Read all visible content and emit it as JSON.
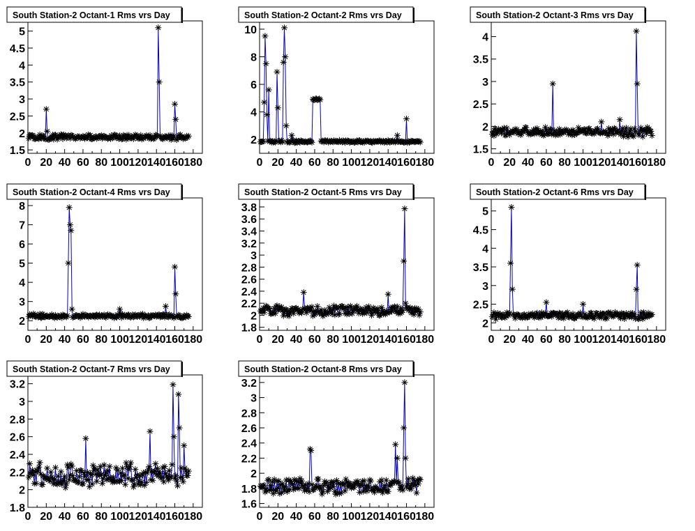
{
  "colors": {
    "background": "#ffffff",
    "frame": "#000000",
    "line": "#0000cc",
    "marker": "#000000",
    "title_box_fill": "#ffffff",
    "title_box_border": "#000000",
    "text": "#000000"
  },
  "chart_data": [
    {
      "type": "line",
      "title": "South Station-2 Octant-1 Rms vrs Day",
      "xlim": [
        0,
        190
      ],
      "ylim": [
        1.4,
        5.3
      ],
      "xticks": [
        0,
        20,
        40,
        60,
        80,
        100,
        120,
        140,
        160,
        180
      ],
      "xtick_labels": [
        "0",
        "20",
        "40",
        "60",
        "80",
        "100",
        "120",
        "140",
        "160",
        "180"
      ],
      "yticks": [
        1.5,
        2,
        2.5,
        3,
        3.5,
        4,
        4.5,
        5
      ],
      "ytick_labels": [
        "1.5",
        "2",
        "2.5",
        "3",
        "3.5",
        "4",
        "4.5",
        "5"
      ],
      "series": [
        {
          "base": 1.88,
          "noise": 0.07,
          "start": 1,
          "end": 175,
          "step": 1,
          "spikes": [
            [
              20,
              2.7
            ],
            [
              21,
              2.05
            ],
            [
              142,
              5.1
            ],
            [
              143,
              3.5
            ],
            [
              160,
              2.85
            ],
            [
              161,
              2.4
            ]
          ],
          "plateaus": []
        }
      ]
    },
    {
      "type": "line",
      "title": "South Station-2 Octant-2 Rms vrs Day",
      "xlim": [
        0,
        190
      ],
      "ylim": [
        1.0,
        10.6
      ],
      "xticks": [
        0,
        20,
        40,
        60,
        80,
        100,
        120,
        140,
        160,
        180
      ],
      "xtick_labels": [
        "0",
        "20",
        "40",
        "60",
        "80",
        "100",
        "120",
        "140",
        "160",
        "180"
      ],
      "yticks": [
        2,
        4,
        6,
        8,
        10
      ],
      "ytick_labels": [
        "2",
        "4",
        "6",
        "8",
        "10"
      ],
      "series": [
        {
          "base": 1.85,
          "noise": 0.08,
          "start": 1,
          "end": 175,
          "step": 1,
          "spikes": [
            [
              5,
              4.7
            ],
            [
              6,
              9.5
            ],
            [
              7,
              7.5
            ],
            [
              8,
              3.8
            ],
            [
              10,
              5.6
            ],
            [
              19,
              6.9
            ],
            [
              20,
              4.3
            ],
            [
              26,
              7.6
            ],
            [
              27,
              10.1
            ],
            [
              28,
              8.0
            ],
            [
              29,
              3.0
            ],
            [
              35,
              2.3
            ],
            [
              150,
              2.3
            ],
            [
              160,
              3.5
            ]
          ],
          "plateaus": [
            [
              58,
              66,
              4.9
            ]
          ]
        }
      ]
    },
    {
      "type": "line",
      "title": "South Station-2 Octant-3 Rms vrs Day",
      "xlim": [
        0,
        190
      ],
      "ylim": [
        1.4,
        4.35
      ],
      "xticks": [
        0,
        20,
        40,
        60,
        80,
        100,
        120,
        140,
        160,
        180
      ],
      "xtick_labels": [
        "0",
        "20",
        "40",
        "60",
        "80",
        "100",
        "120",
        "140",
        "160",
        "180"
      ],
      "yticks": [
        1.5,
        2,
        2.5,
        3,
        3.5,
        4
      ],
      "ytick_labels": [
        "1.5",
        "2",
        "2.5",
        "3",
        "3.5",
        "4"
      ],
      "series": [
        {
          "base": 1.88,
          "noise": 0.09,
          "start": 1,
          "end": 175,
          "step": 1,
          "spikes": [
            [
              67,
              2.95
            ],
            [
              158,
              4.12
            ],
            [
              159,
              2.95
            ],
            [
              120,
              2.1
            ],
            [
              140,
              2.15
            ]
          ],
          "plateaus": []
        }
      ]
    },
    {
      "type": "line",
      "title": "South Station-2 Octant-4 Rms vrs Day",
      "xlim": [
        0,
        190
      ],
      "ylim": [
        1.5,
        8.4
      ],
      "xticks": [
        0,
        20,
        40,
        60,
        80,
        100,
        120,
        140,
        160,
        180
      ],
      "xtick_labels": [
        "0",
        "20",
        "40",
        "60",
        "80",
        "100",
        "120",
        "140",
        "160",
        "180"
      ],
      "yticks": [
        2,
        3,
        4,
        5,
        6,
        7,
        8
      ],
      "ytick_labels": [
        "2",
        "3",
        "4",
        "5",
        "6",
        "7",
        "8"
      ],
      "series": [
        {
          "base": 2.25,
          "noise": 0.09,
          "start": 1,
          "end": 175,
          "step": 1,
          "spikes": [
            [
              44,
              5.0
            ],
            [
              45,
              7.9
            ],
            [
              46,
              7.0
            ],
            [
              47,
              6.7
            ],
            [
              48,
              2.6
            ],
            [
              100,
              2.6
            ],
            [
              150,
              2.75
            ],
            [
              160,
              4.8
            ],
            [
              161,
              3.4
            ]
          ],
          "plateaus": []
        }
      ]
    },
    {
      "type": "line",
      "title": "South Station-2 Octant-5 Rms vrs Day",
      "xlim": [
        0,
        190
      ],
      "ylim": [
        1.75,
        3.95
      ],
      "xticks": [
        0,
        20,
        40,
        60,
        80,
        100,
        120,
        140,
        160,
        180
      ],
      "xtick_labels": [
        "0",
        "20",
        "40",
        "60",
        "80",
        "100",
        "120",
        "140",
        "160",
        "180"
      ],
      "yticks": [
        1.8,
        2,
        2.2,
        2.4,
        2.6,
        2.8,
        3,
        3.2,
        3.4,
        3.6,
        3.8
      ],
      "ytick_labels": [
        "1.8",
        "2",
        "2.2",
        "2.4",
        "2.6",
        "2.8",
        "3",
        "3.2",
        "3.4",
        "3.6",
        "3.8"
      ],
      "series": [
        {
          "base": 2.08,
          "noise": 0.08,
          "start": 1,
          "end": 175,
          "step": 1,
          "spikes": [
            [
              48,
              2.38
            ],
            [
              140,
              2.35
            ],
            [
              157,
              2.9
            ],
            [
              158,
              3.77
            ],
            [
              159,
              2.2
            ]
          ],
          "plateaus": []
        }
      ]
    },
    {
      "type": "line",
      "title": "South Station-2 Octant-6 Rms vrs Day",
      "xlim": [
        0,
        190
      ],
      "ylim": [
        1.8,
        5.35
      ],
      "xticks": [
        0,
        20,
        40,
        60,
        80,
        100,
        120,
        140,
        160,
        180
      ],
      "xtick_labels": [
        "0",
        "20",
        "40",
        "60",
        "80",
        "100",
        "120",
        "140",
        "160",
        "180"
      ],
      "yticks": [
        2,
        2.5,
        3,
        3.5,
        4,
        4.5,
        5
      ],
      "ytick_labels": [
        "2",
        "2.5",
        "3",
        "3.5",
        "4",
        "4.5",
        "5"
      ],
      "series": [
        {
          "base": 2.2,
          "noise": 0.08,
          "start": 1,
          "end": 175,
          "step": 1,
          "spikes": [
            [
              21,
              3.6
            ],
            [
              22,
              5.1
            ],
            [
              23,
              2.9
            ],
            [
              60,
              2.55
            ],
            [
              100,
              2.5
            ],
            [
              158,
              2.9
            ],
            [
              159,
              3.55
            ]
          ],
          "plateaus": []
        }
      ]
    },
    {
      "type": "line",
      "title": "South Station-2 Octant-7 Rms vrs Day",
      "xlim": [
        0,
        190
      ],
      "ylim": [
        1.8,
        3.3
      ],
      "xticks": [
        0,
        20,
        40,
        60,
        80,
        100,
        120,
        140,
        160,
        180
      ],
      "xtick_labels": [
        "0",
        "20",
        "40",
        "60",
        "80",
        "100",
        "120",
        "140",
        "160",
        "180"
      ],
      "yticks": [
        1.8,
        2,
        2.2,
        2.4,
        2.6,
        2.8,
        3,
        3.2
      ],
      "ytick_labels": [
        "1.8",
        "2",
        "2.2",
        "2.4",
        "2.6",
        "2.8",
        "3",
        "3.2"
      ],
      "series": [
        {
          "base": 2.17,
          "noise": 0.12,
          "start": 1,
          "end": 175,
          "step": 1,
          "spikes": [
            [
              63,
              2.58
            ],
            [
              133,
              2.66
            ],
            [
              158,
              3.19
            ],
            [
              159,
              2.6
            ],
            [
              164,
              3.08
            ],
            [
              165,
              2.7
            ],
            [
              170,
              2.5
            ]
          ],
          "plateaus": []
        }
      ]
    },
    {
      "type": "line",
      "title": "South Station-2 Octant-8 Rms vrs Day",
      "xlim": [
        0,
        190
      ],
      "ylim": [
        1.55,
        3.3
      ],
      "xticks": [
        0,
        20,
        40,
        60,
        80,
        100,
        120,
        140,
        160,
        180
      ],
      "xtick_labels": [
        "0",
        "20",
        "40",
        "60",
        "80",
        "100",
        "120",
        "140",
        "160",
        "180"
      ],
      "yticks": [
        1.6,
        1.8,
        2,
        2.2,
        2.4,
        2.6,
        2.8,
        3,
        3.2
      ],
      "ytick_labels": [
        "1.6",
        "1.8",
        "2",
        "2.2",
        "2.4",
        "2.6",
        "2.8",
        "3",
        "3.2"
      ],
      "series": [
        {
          "base": 1.83,
          "noise": 0.09,
          "start": 1,
          "end": 175,
          "step": 1,
          "spikes": [
            [
              55,
              2.32
            ],
            [
              56,
              2.3
            ],
            [
              148,
              2.38
            ],
            [
              150,
              2.2
            ],
            [
              157,
              2.6
            ],
            [
              158,
              3.2
            ],
            [
              159,
              2.2
            ]
          ],
          "plateaus": []
        }
      ]
    }
  ]
}
